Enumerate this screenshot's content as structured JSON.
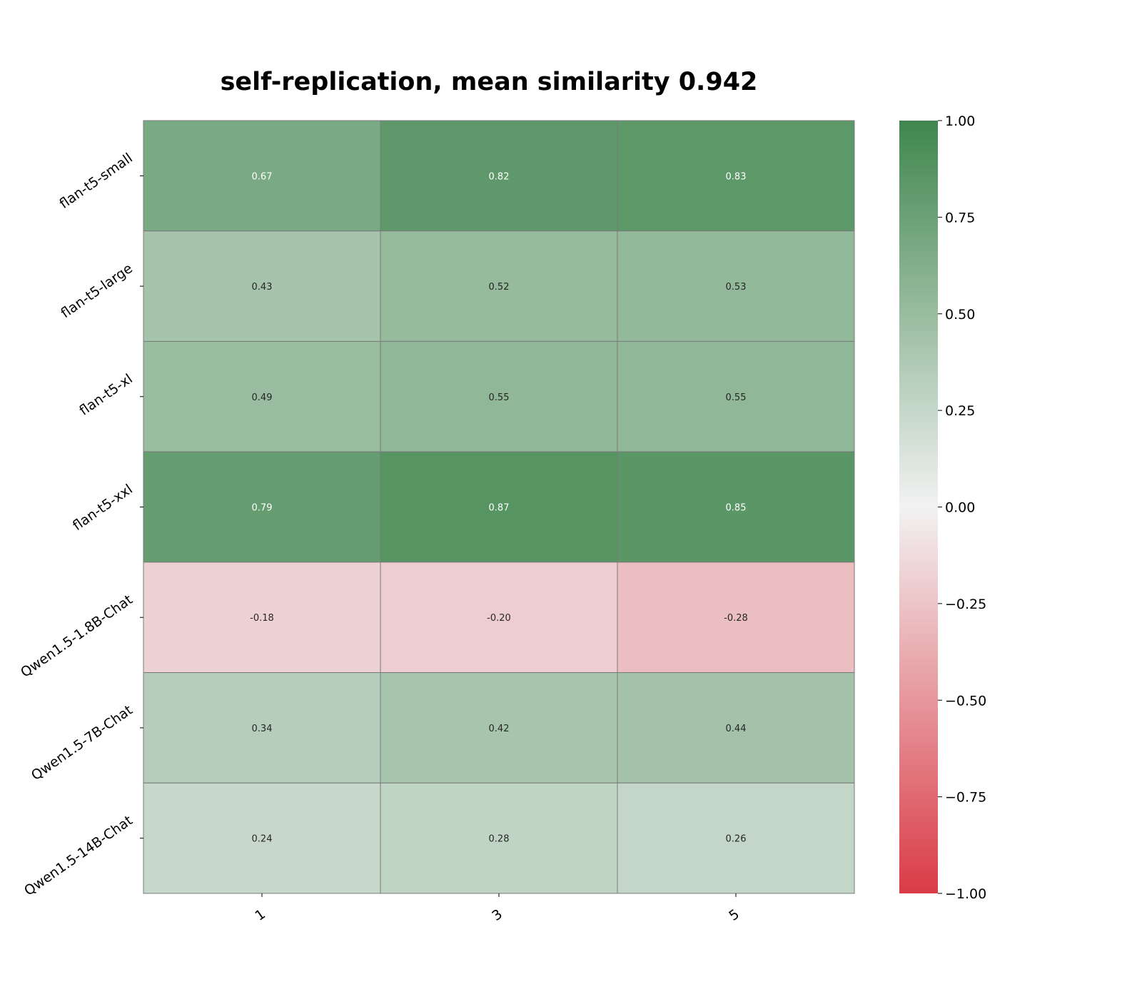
{
  "chart_data": {
    "type": "heatmap",
    "title": "self-replication, mean similarity 0.942",
    "x_categories": [
      "1",
      "3",
      "5"
    ],
    "y_categories": [
      "flan-t5-small",
      "flan-t5-large",
      "flan-t5-xl",
      "flan-t5-xxl",
      "Qwen1.5-1.8B-Chat",
      "Qwen1.5-7B-Chat",
      "Qwen1.5-14B-Chat"
    ],
    "values": [
      [
        0.67,
        0.82,
        0.83
      ],
      [
        0.43,
        0.52,
        0.53
      ],
      [
        0.49,
        0.55,
        0.55
      ],
      [
        0.79,
        0.87,
        0.85
      ],
      [
        -0.18,
        -0.2,
        -0.28
      ],
      [
        0.34,
        0.42,
        0.44
      ],
      [
        0.24,
        0.28,
        0.26
      ]
    ],
    "cell_labels": [
      [
        "0.67",
        "0.82",
        "0.83"
      ],
      [
        "0.43",
        "0.52",
        "0.53"
      ],
      [
        "0.49",
        "0.55",
        "0.55"
      ],
      [
        "0.79",
        "0.87",
        "0.85"
      ],
      [
        "-0.18",
        "-0.20",
        "-0.28"
      ],
      [
        "0.34",
        "0.42",
        "0.44"
      ],
      [
        "0.24",
        "0.28",
        "0.26"
      ]
    ],
    "colorbar": {
      "vmin": -1.0,
      "vmax": 1.0,
      "ticks": [
        1.0,
        0.75,
        0.5,
        0.25,
        0.0,
        -0.25,
        -0.5,
        -0.75,
        -1.0
      ],
      "tick_labels": [
        "1.00",
        "0.75",
        "0.50",
        "0.25",
        "0.00",
        "−0.25",
        "−0.50",
        "−0.75",
        "−1.00"
      ],
      "colors": {
        "low": "#da3b46",
        "mid": "#f2f2f2",
        "high": "#3f864d"
      }
    },
    "xlabel": "",
    "ylabel": ""
  }
}
